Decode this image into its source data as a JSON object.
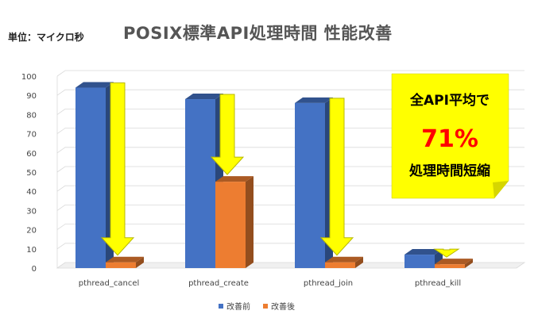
{
  "unit_label": "単位：マイクロ秒",
  "chart_data": {
    "type": "bar",
    "title": "POSIX標準API処理時間 性能改善",
    "categories": [
      "pthread_cancel",
      "pthread_create",
      "pthread_join",
      "pthread_kill"
    ],
    "series": [
      {
        "name": "改善前",
        "values": [
          94,
          88,
          86,
          7
        ],
        "color": "#4472C4"
      },
      {
        "name": "改善後",
        "values": [
          3,
          45,
          3,
          2
        ],
        "color": "#ED7D31"
      }
    ],
    "ylim": [
      0,
      100
    ],
    "yticks": [
      0,
      10,
      20,
      30,
      40,
      50,
      60,
      70,
      80,
      90,
      100
    ],
    "grid": true,
    "legend_position": "bottom",
    "annotation": {
      "line1": "全API平均で",
      "line2": "71%",
      "line3": "処理時間短縮",
      "bg_color": "#FFFF00",
      "highlight_color": "#FF0000"
    },
    "arrow_color": "#FFFF00"
  }
}
